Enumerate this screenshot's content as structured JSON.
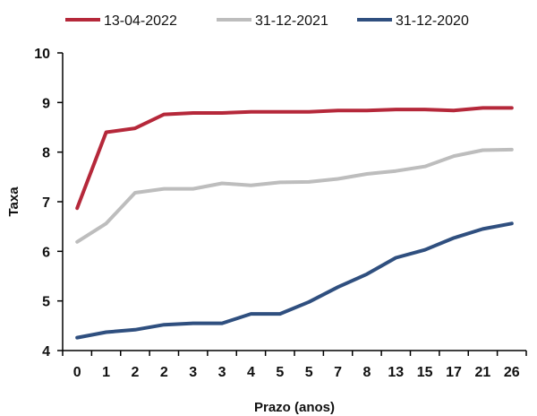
{
  "chart_data": {
    "type": "line",
    "xlabel": "Prazo (anos)",
    "ylabel": "Taxa",
    "ylim": [
      4,
      10
    ],
    "yticks": [
      4,
      5,
      6,
      7,
      8,
      9,
      10
    ],
    "categories": [
      "0",
      "1",
      "2",
      "2",
      "3",
      "3",
      "4",
      "5",
      "5",
      "7",
      "8",
      "13",
      "15",
      "17",
      "21",
      "26"
    ],
    "legend_position": "top",
    "grid": false,
    "series": [
      {
        "name": "13-04-2022",
        "color": "#b5283a",
        "values": [
          6.87,
          8.4,
          8.48,
          8.76,
          8.79,
          8.79,
          8.81,
          8.81,
          8.81,
          8.84,
          8.84,
          8.86,
          8.86,
          8.84,
          8.89,
          8.89
        ]
      },
      {
        "name": "31-12-2021",
        "color": "#bdbdbd",
        "values": [
          6.19,
          6.56,
          7.18,
          7.26,
          7.26,
          7.37,
          7.33,
          7.39,
          7.4,
          7.46,
          7.56,
          7.62,
          7.71,
          7.92,
          8.04,
          8.05
        ]
      },
      {
        "name": "31-12-2020",
        "color": "#2f4f7f",
        "values": [
          4.26,
          4.37,
          4.42,
          4.52,
          4.55,
          4.55,
          4.74,
          4.74,
          4.98,
          5.28,
          5.54,
          5.87,
          6.03,
          6.27,
          6.45,
          6.56
        ]
      }
    ]
  }
}
